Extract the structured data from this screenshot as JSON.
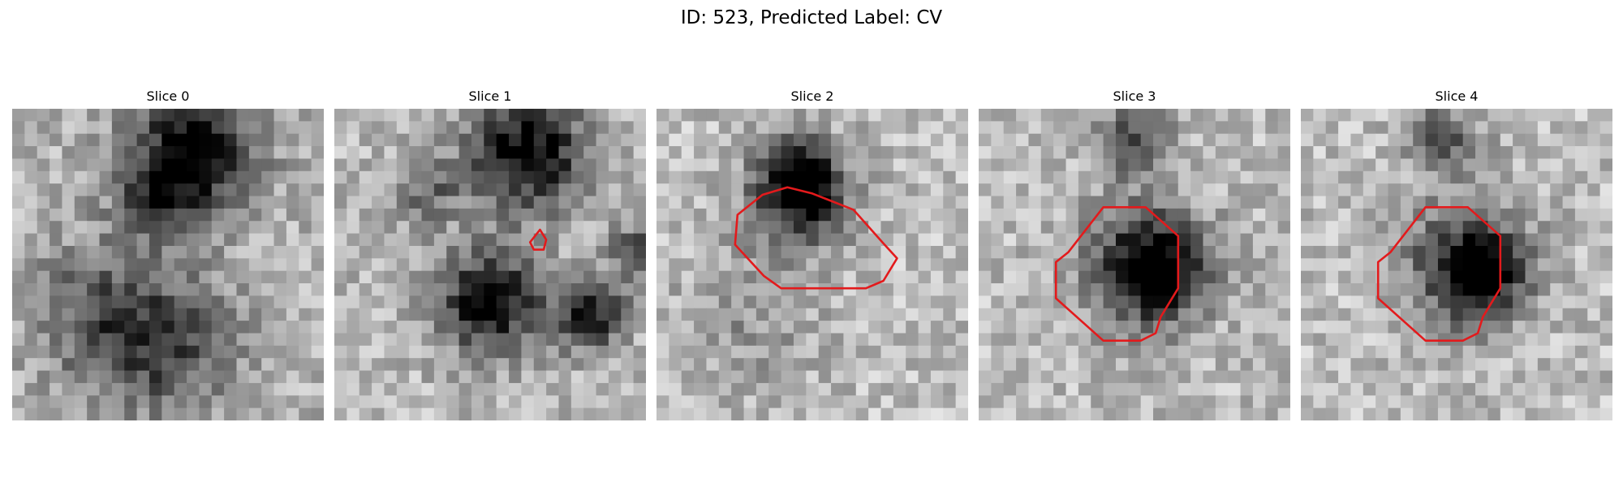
{
  "figure": {
    "suptitle": "ID: 523, Predicted Label: CV",
    "contour_color": "#e31a1c",
    "grid_size": 25,
    "panels": [
      {
        "title": "Slice 0",
        "blobs": [
          [
            14,
            3,
            3.4,
            0.75
          ],
          [
            11,
            7,
            2.2,
            0.35
          ],
          [
            7,
            16,
            4.0,
            0.35
          ],
          [
            12,
            19,
            4.0,
            0.35
          ]
        ],
        "noise_seed": 11,
        "base": 0.7,
        "contour": []
      },
      {
        "title": "Slice 1",
        "blobs": [
          [
            15,
            3,
            3.2,
            0.75
          ],
          [
            12,
            15,
            2.8,
            0.75
          ],
          [
            20,
            16,
            2.0,
            0.6
          ],
          [
            7,
            6,
            2.0,
            0.3
          ],
          [
            24,
            11,
            1.5,
            0.5
          ]
        ],
        "noise_seed": 23,
        "base": 0.72,
        "contour": [
          [
            15.7,
            10.7
          ],
          [
            16.5,
            9.7
          ],
          [
            17.0,
            10.5
          ],
          [
            16.8,
            11.3
          ],
          [
            16.0,
            11.3
          ]
        ]
      },
      {
        "title": "Slice 2",
        "blobs": [
          [
            11,
            5,
            2.2,
            0.65
          ],
          [
            11,
            7,
            2.8,
            0.45
          ],
          [
            7,
            16,
            4.0,
            0.15
          ]
        ],
        "noise_seed": 37,
        "base": 0.74,
        "contour": [
          [
            6.5,
            8.5
          ],
          [
            8.5,
            6.9
          ],
          [
            10.5,
            6.3
          ],
          [
            12.5,
            6.8
          ],
          [
            15.8,
            8.1
          ],
          [
            18.2,
            10.8
          ],
          [
            19.3,
            12.0
          ],
          [
            18.2,
            13.8
          ],
          [
            16.8,
            14.4
          ],
          [
            10.0,
            14.4
          ],
          [
            8.6,
            13.4
          ],
          [
            6.3,
            10.9
          ]
        ]
      },
      {
        "title": "Slice 3",
        "blobs": [
          [
            12,
            2,
            2.0,
            0.4
          ],
          [
            13,
            12,
            3.4,
            0.65
          ],
          [
            14,
            13,
            2.0,
            0.45
          ]
        ],
        "noise_seed": 53,
        "base": 0.73,
        "contour": [
          [
            7.2,
            11.5
          ],
          [
            10.0,
            7.9
          ],
          [
            13.4,
            7.9
          ],
          [
            16.0,
            10.2
          ],
          [
            16.0,
            14.4
          ],
          [
            14.6,
            16.7
          ],
          [
            14.2,
            18.0
          ],
          [
            13.0,
            18.6
          ],
          [
            10.0,
            18.6
          ],
          [
            6.2,
            15.2
          ],
          [
            6.2,
            12.3
          ]
        ]
      },
      {
        "title": "Slice 4",
        "blobs": [
          [
            11,
            2,
            2.0,
            0.4
          ],
          [
            13,
            12,
            3.4,
            0.6
          ],
          [
            14,
            13,
            2.0,
            0.42
          ]
        ],
        "noise_seed": 71,
        "base": 0.74,
        "contour": [
          [
            7.2,
            11.5
          ],
          [
            10.0,
            7.9
          ],
          [
            13.4,
            7.9
          ],
          [
            16.0,
            10.2
          ],
          [
            16.0,
            14.4
          ],
          [
            14.6,
            16.7
          ],
          [
            14.2,
            18.0
          ],
          [
            13.0,
            18.6
          ],
          [
            10.0,
            18.6
          ],
          [
            6.2,
            15.2
          ],
          [
            6.2,
            12.3
          ]
        ]
      }
    ]
  }
}
